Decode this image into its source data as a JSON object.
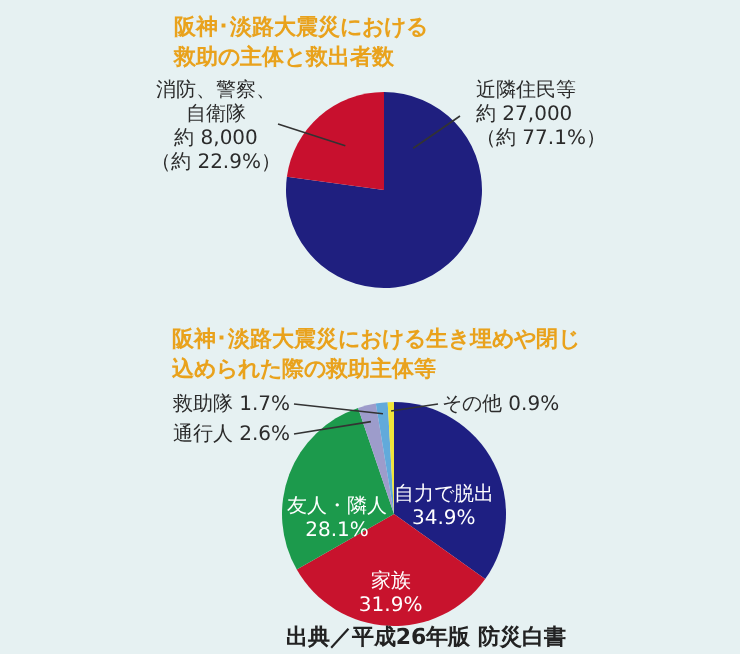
{
  "chart_data": [
    {
      "type": "pie",
      "title": "阪神･淡路大震災における救助の主体と救出者数",
      "categories": [
        "近隣住民等",
        "消防、警察、自衛隊"
      ],
      "values": [
        27000,
        8000
      ],
      "colors": [
        "#1f1f7f",
        "#c8102e"
      ],
      "value_labels": [
        "約 27,000\n（約 77.1%）",
        "約 8,000\n（約 22.9%）"
      ]
    },
    {
      "type": "pie",
      "title": "阪神･淡路大震災における生き埋めや閉じ込められた際の救助主体等",
      "categories": [
        "自力で脱出",
        "家族",
        "友人・隣人",
        "通行人",
        "救助隊",
        "その他"
      ],
      "values": [
        34.9,
        31.9,
        28.1,
        2.6,
        1.7,
        0.9
      ],
      "colors": [
        "#1e1f82",
        "#c8132d",
        "#1c9a4c",
        "#9d9ccb",
        "#62aadb",
        "#f0e43a"
      ],
      "value_labels": [
        "34.9%",
        "31.9%",
        "28.1%",
        "2.6%",
        "1.7%",
        "0.9%"
      ],
      "annotations": [
        "出典／平成26年版 防災白書"
      ]
    }
  ]
}
